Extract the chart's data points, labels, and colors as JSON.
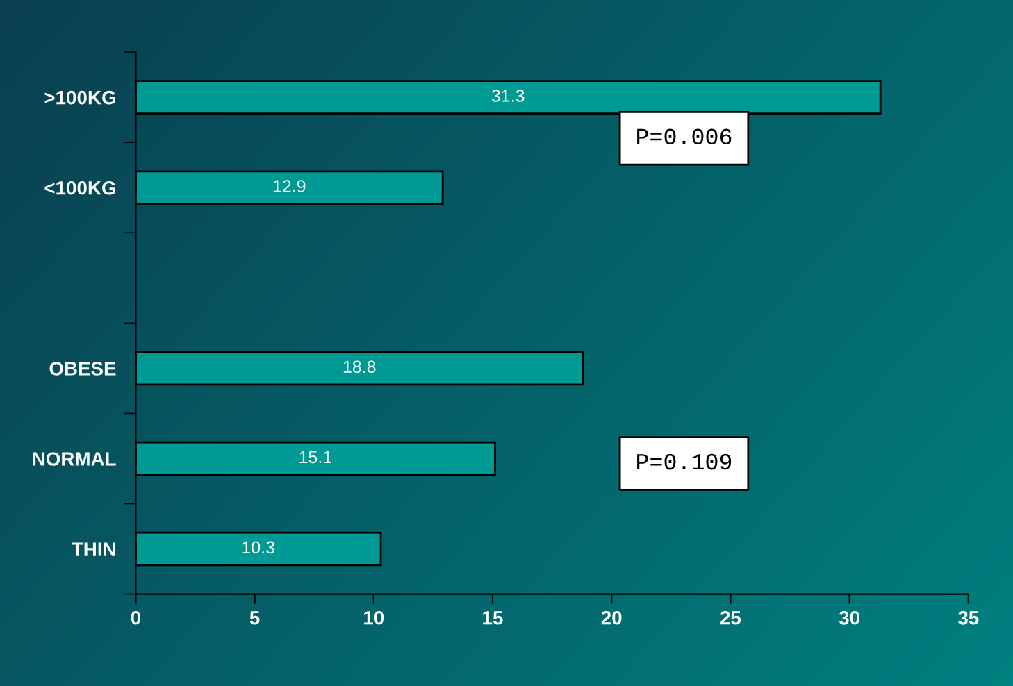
{
  "chart_data": {
    "type": "bar",
    "orientation": "horizontal",
    "categories": [
      ">100KG",
      "<100KG",
      null,
      "OBESE",
      "NORMAL",
      "THIN"
    ],
    "values": [
      31.3,
      12.9,
      null,
      18.8,
      15.1,
      10.3
    ],
    "color": "#009a94",
    "data_labels": true,
    "xlim": [
      0,
      35
    ],
    "xticks": [
      0,
      5,
      10,
      15,
      20,
      25,
      30,
      35
    ],
    "grid": false,
    "legend": false,
    "annotations": [
      "P=0.006",
      "P=0.109"
    ]
  }
}
